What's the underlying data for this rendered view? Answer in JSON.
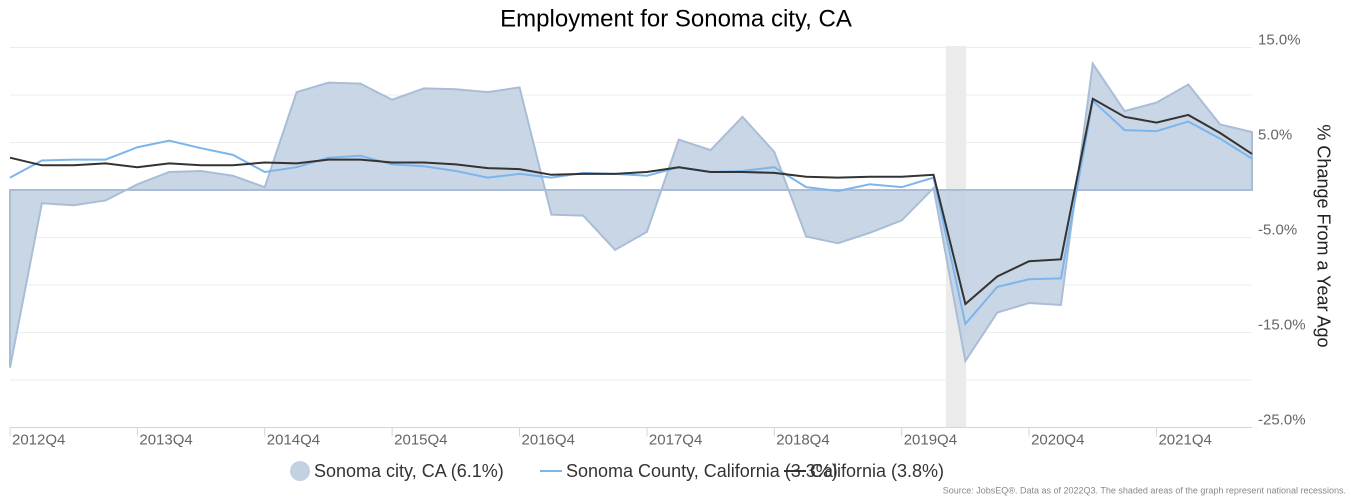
{
  "chart_data": {
    "type": "line",
    "title": "Employment for Sonoma city, CA",
    "y_label": "% Change From a Year Ago",
    "source": "Source: JobsEQ®. Data as of 2022Q3. The shaded areas of the graph represent national recessions.",
    "categories": [
      "2012Q4",
      null,
      null,
      null,
      "2013Q4",
      null,
      null,
      null,
      "2014Q4",
      null,
      null,
      null,
      "2015Q4",
      null,
      null,
      null,
      "2016Q4",
      null,
      null,
      null,
      "2017Q4",
      null,
      null,
      null,
      "2018Q4",
      null,
      null,
      null,
      "2019Q4",
      null,
      null,
      null,
      "2020Q4",
      null,
      null,
      null,
      "2021Q4",
      null,
      null,
      null
    ],
    "series": [
      {
        "name": "Sonoma city, CA (6.1%)",
        "style": "area",
        "color": "#c3d1e3",
        "values": [
          -18.7,
          -1.4,
          -1.6,
          -1.1,
          0.6,
          1.9,
          2.0,
          1.5,
          0.3,
          10.3,
          11.3,
          11.2,
          9.5,
          10.7,
          10.6,
          10.3,
          10.8,
          -2.6,
          -2.7,
          -6.3,
          -4.4,
          5.3,
          4.2,
          7.7,
          4.0,
          -4.9,
          -5.6,
          -4.5,
          -3.2,
          0.2,
          -18.0,
          -12.9,
          -11.9,
          -12.1,
          13.3,
          8.3,
          9.2,
          11.1,
          6.9,
          6.1
        ]
      },
      {
        "name": "Sonoma County, California (3.3%)",
        "style": "line",
        "color": "#7cb5ec",
        "values": [
          1.3,
          3.1,
          3.2,
          3.2,
          4.5,
          5.2,
          4.4,
          3.7,
          1.9,
          2.4,
          3.4,
          3.6,
          2.7,
          2.5,
          2.0,
          1.3,
          1.7,
          1.3,
          1.8,
          1.7,
          1.5,
          2.4,
          1.9,
          2.0,
          2.4,
          0.3,
          -0.1,
          0.6,
          0.3,
          1.3,
          -14.1,
          -10.2,
          -9.4,
          -9.3,
          9.4,
          6.3,
          6.2,
          7.2,
          5.4,
          3.3
        ]
      },
      {
        "name": "California (3.8%)",
        "style": "line",
        "color": "#333333",
        "values": [
          3.4,
          2.6,
          2.6,
          2.8,
          2.4,
          2.8,
          2.6,
          2.6,
          2.9,
          2.8,
          3.2,
          3.2,
          2.9,
          2.9,
          2.7,
          2.3,
          2.2,
          1.6,
          1.7,
          1.7,
          1.9,
          2.4,
          1.9,
          1.9,
          1.8,
          1.4,
          1.3,
          1.4,
          1.4,
          1.6,
          -12.0,
          -9.1,
          -7.5,
          -7.3,
          9.6,
          7.7,
          7.1,
          7.9,
          6.0,
          3.8
        ]
      }
    ],
    "ylim": [
      -25,
      15
    ],
    "yticks": [
      {
        "value": 15,
        "label": "15.0%"
      },
      {
        "value": 5,
        "label": "5.0%"
      },
      {
        "value": -5,
        "label": "-5.0%"
      },
      {
        "value": -15,
        "label": "-15.0%"
      },
      {
        "value": -25,
        "label": "-25.0%"
      }
    ],
    "minor_yticks": [
      10,
      0,
      -10,
      -20
    ],
    "grid": true
  }
}
